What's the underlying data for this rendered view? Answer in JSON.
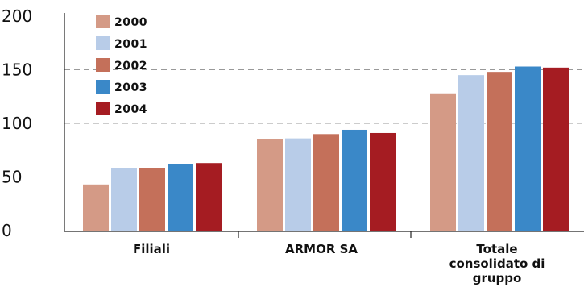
{
  "chart_data": {
    "type": "bar",
    "categories": [
      "Filiali",
      "ARMOR SA",
      "Totale consolidato di gruppo"
    ],
    "category_lines": [
      [
        "Filiali"
      ],
      [
        "ARMOR SA"
      ],
      [
        "Totale",
        "consolidato di",
        "gruppo"
      ]
    ],
    "series": [
      {
        "name": "2000",
        "values": [
          43,
          85,
          128
        ],
        "color": "#d49a86"
      },
      {
        "name": "2001",
        "values": [
          58,
          86,
          145
        ],
        "color": "#b8cce8"
      },
      {
        "name": "2002",
        "values": [
          58,
          90,
          148
        ],
        "color": "#c4705a"
      },
      {
        "name": "2003",
        "values": [
          62,
          94,
          153
        ],
        "color": "#3a88c8"
      },
      {
        "name": "2004",
        "values": [
          63,
          91,
          152
        ],
        "color": "#a51c22"
      }
    ],
    "ylim": [
      0,
      200
    ],
    "yticks": [
      "0",
      "50",
      "100",
      "150",
      "200"
    ],
    "grid": true,
    "legend_placement": "top-left"
  }
}
